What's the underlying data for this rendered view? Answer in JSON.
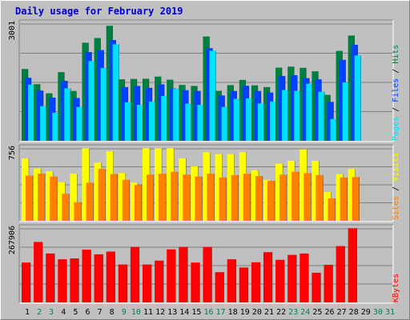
{
  "title": "Daily usage for February 2019",
  "chart_data": [
    {
      "type": "bar",
      "panel": "top",
      "ymax_label": "3001",
      "ymax": 3001,
      "categories": [
        "1",
        "2",
        "3",
        "4",
        "5",
        "6",
        "7",
        "8",
        "9",
        "10",
        "11",
        "12",
        "13",
        "14",
        "15",
        "16",
        "17",
        "18",
        "19",
        "20",
        "21",
        "22",
        "23",
        "24",
        "25",
        "26",
        "27",
        "28",
        "29",
        "30",
        "31"
      ],
      "series": [
        {
          "name": "Hits",
          "color": "#008040",
          "values": [
            1845,
            1455,
            1220,
            1765,
            1280,
            2520,
            2640,
            2955,
            1580,
            1590,
            1595,
            1650,
            1570,
            1435,
            1410,
            2680,
            1285,
            1430,
            1565,
            1425,
            1380,
            1880,
            1905,
            1875,
            1785,
            1180,
            2310,
            2705,
            null,
            null,
            null
          ]
        },
        {
          "name": "Files",
          "color": "#0040ff",
          "values": [
            1620,
            1290,
            1110,
            1540,
            1100,
            2280,
            2330,
            2590,
            1380,
            1410,
            1360,
            1450,
            1345,
            1300,
            1280,
            2380,
            1165,
            1280,
            1415,
            1280,
            1240,
            1665,
            1685,
            1610,
            1580,
            1000,
            2080,
            2465,
            null,
            null,
            null
          ]
        },
        {
          "name": "Pages",
          "color": "#00e0ff",
          "values": [
            1445,
            890,
            720,
            1350,
            870,
            2050,
            1870,
            2480,
            990,
            925,
            1010,
            1150,
            1335,
            955,
            925,
            2315,
            870,
            1080,
            1090,
            960,
            1010,
            1305,
            1285,
            1465,
            1260,
            560,
            1500,
            2195,
            null,
            null,
            null
          ]
        }
      ],
      "axis_label_order": [
        "Pages",
        "/",
        "Files",
        "/",
        "Hits"
      ]
    },
    {
      "type": "bar",
      "panel": "middle",
      "ymax_label": "756",
      "ymax": 756,
      "categories": [
        "1",
        "2",
        "3",
        "4",
        "5",
        "6",
        "7",
        "8",
        "9",
        "10",
        "11",
        "12",
        "13",
        "14",
        "15",
        "16",
        "17",
        "18",
        "19",
        "20",
        "21",
        "22",
        "23",
        "24",
        "25",
        "26",
        "27",
        "28",
        "29",
        "30",
        "31"
      ],
      "series": [
        {
          "name": "Visits",
          "color": "#ffff00",
          "values": [
            655,
            550,
            520,
            405,
            495,
            760,
            610,
            730,
            500,
            400,
            760,
            760,
            760,
            655,
            570,
            720,
            700,
            700,
            720,
            530,
            430,
            600,
            630,
            750,
            630,
            300,
            490,
            545,
            null,
            null,
            null
          ]
        },
        {
          "name": "Sites",
          "color": "#ff8000",
          "values": [
            475,
            495,
            465,
            285,
            195,
            400,
            545,
            490,
            430,
            375,
            485,
            495,
            515,
            485,
            465,
            495,
            455,
            480,
            495,
            470,
            420,
            485,
            515,
            500,
            480,
            235,
            455,
            460,
            null,
            null,
            null
          ]
        }
      ],
      "axis_label_order": [
        "Sites",
        "/",
        "Visits"
      ]
    },
    {
      "type": "bar",
      "panel": "bottom",
      "ymax_label": "267906",
      "ymax": 267906,
      "categories": [
        "1",
        "2",
        "3",
        "4",
        "5",
        "6",
        "7",
        "8",
        "9",
        "10",
        "11",
        "12",
        "13",
        "14",
        "15",
        "16",
        "17",
        "18",
        "19",
        "20",
        "21",
        "22",
        "23",
        "24",
        "25",
        "26",
        "27",
        "28",
        "29",
        "30",
        "31"
      ],
      "series": [
        {
          "name": "KBytes",
          "color": "#ff0000",
          "values": [
            145000,
            220000,
            178000,
            157000,
            160000,
            192000,
            175000,
            185000,
            138000,
            202000,
            138000,
            152000,
            193000,
            202000,
            145000,
            202000,
            110000,
            157000,
            127000,
            146000,
            183000,
            155000,
            173000,
            178000,
            108000,
            137000,
            205000,
            270000,
            null,
            null,
            null
          ]
        }
      ],
      "axis_label_order": [
        "KBytes"
      ]
    }
  ],
  "day_colors": {
    "weekday": "#000000",
    "weekend": "#00805c"
  },
  "weekend_days": [
    2,
    3,
    9,
    10,
    16,
    17,
    23,
    24,
    30,
    31
  ],
  "axis_label_colors": {
    "Pages": "#00e0ff",
    "Files": "#0040ff",
    "Hits": "#008040",
    "Sites": "#ff8000",
    "Visits": "#ffff00",
    "KBytes": "#ff0000",
    "/": "#000000"
  }
}
